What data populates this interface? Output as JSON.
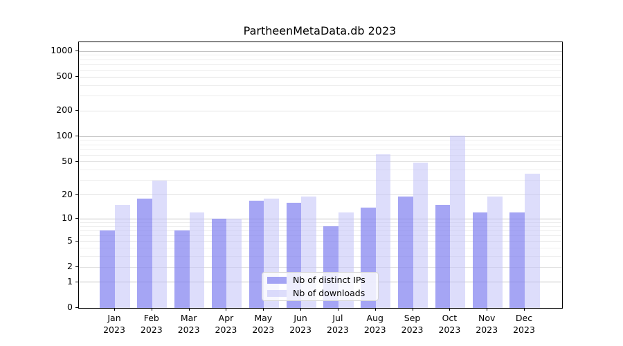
{
  "chart_data": {
    "type": "bar",
    "title": "PartheenMetaData.db 2023",
    "categories": [
      "Jan 2023",
      "Feb 2023",
      "Mar 2023",
      "Apr 2023",
      "May 2023",
      "Jun 2023",
      "Jul 2023",
      "Aug 2023",
      "Sep 2023",
      "Oct 2023",
      "Nov 2023",
      "Dec 2023"
    ],
    "series": [
      {
        "name": "Nb of distinct IPs",
        "color": "rgba(130,130,240,0.72)",
        "values": [
          7,
          18,
          7,
          10,
          17,
          16,
          8,
          14,
          19,
          15,
          12,
          12
        ]
      },
      {
        "name": "Nb of downloads",
        "color": "rgba(193,193,247,0.55)",
        "values": [
          15,
          30,
          12,
          10,
          18,
          19,
          12,
          62,
          49,
          103,
          19,
          36
        ]
      }
    ],
    "yscale": "log1p",
    "yticks": [
      0,
      1,
      2,
      5,
      10,
      20,
      50,
      100,
      200,
      500,
      1000
    ],
    "ylim": [
      0,
      1280
    ],
    "xlabel": "",
    "ylabel": "",
    "grid": true,
    "legend_position": "lower center",
    "grid_colors": {
      "major": "#c2c2c2",
      "labeled_minor": "#e2e2e2",
      "minor": "#eeeeee"
    }
  }
}
